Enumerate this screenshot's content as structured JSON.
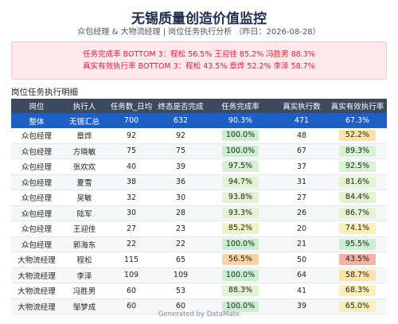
{
  "header": {
    "title": "无锡质量创造价值监控",
    "subtitle": "众包经理 & 大物流经理 | 岗位任务执行分析 （昨日：2026-08-28）"
  },
  "alert": {
    "lines": [
      "任务完成率 BOTTOM 3：程松 56.5%  王迎佳 85.2%  冯胜男 88.3%",
      "真实有效执行率 BOTTOM 3：程松 43.5%  章烨 52.2%  李泽 58.7%"
    ]
  },
  "section_title": "岗位任务执行明细",
  "table": {
    "columns": [
      "岗位",
      "执行人",
      "任务数_日均",
      "终态是否完成",
      "任务完成率",
      "真实执行数",
      "真实有效执行率"
    ],
    "summary": [
      "整体",
      "无锡汇总",
      "700",
      "632",
      "90.3%",
      "471",
      "67.3%"
    ],
    "rows": [
      [
        "众包经理",
        "章烨",
        "92",
        "92",
        "100.0%",
        "48",
        "52.2%"
      ],
      [
        "众包经理",
        "方晓敏",
        "75",
        "75",
        "100.0%",
        "67",
        "89.3%"
      ],
      [
        "众包经理",
        "张欢欢",
        "40",
        "39",
        "97.5%",
        "37",
        "92.5%"
      ],
      [
        "众包经理",
        "夏雪",
        "38",
        "36",
        "94.7%",
        "31",
        "81.6%"
      ],
      [
        "众包经理",
        "吴敏",
        "32",
        "30",
        "93.8%",
        "27",
        "84.4%"
      ],
      [
        "众包经理",
        "陆军",
        "30",
        "28",
        "93.3%",
        "26",
        "86.7%"
      ],
      [
        "众包经理",
        "王迎佳",
        "27",
        "23",
        "85.2%",
        "20",
        "74.1%"
      ],
      [
        "众包经理",
        "郭海东",
        "22",
        "22",
        "100.0%",
        "21",
        "95.5%"
      ],
      [
        "大物流经理",
        "程松",
        "115",
        "65",
        "56.5%",
        "50",
        "43.5%"
      ],
      [
        "大物流经理",
        "李泽",
        "109",
        "109",
        "100.0%",
        "64",
        "58.7%"
      ],
      [
        "大物流经理",
        "冯胜男",
        "60",
        "53",
        "88.3%",
        "41",
        "68.3%"
      ],
      [
        "大物流经理",
        "邹梦成",
        "60",
        "60",
        "100.0%",
        "39",
        "65.0%"
      ]
    ]
  },
  "footer": "Generated by DataMate"
}
